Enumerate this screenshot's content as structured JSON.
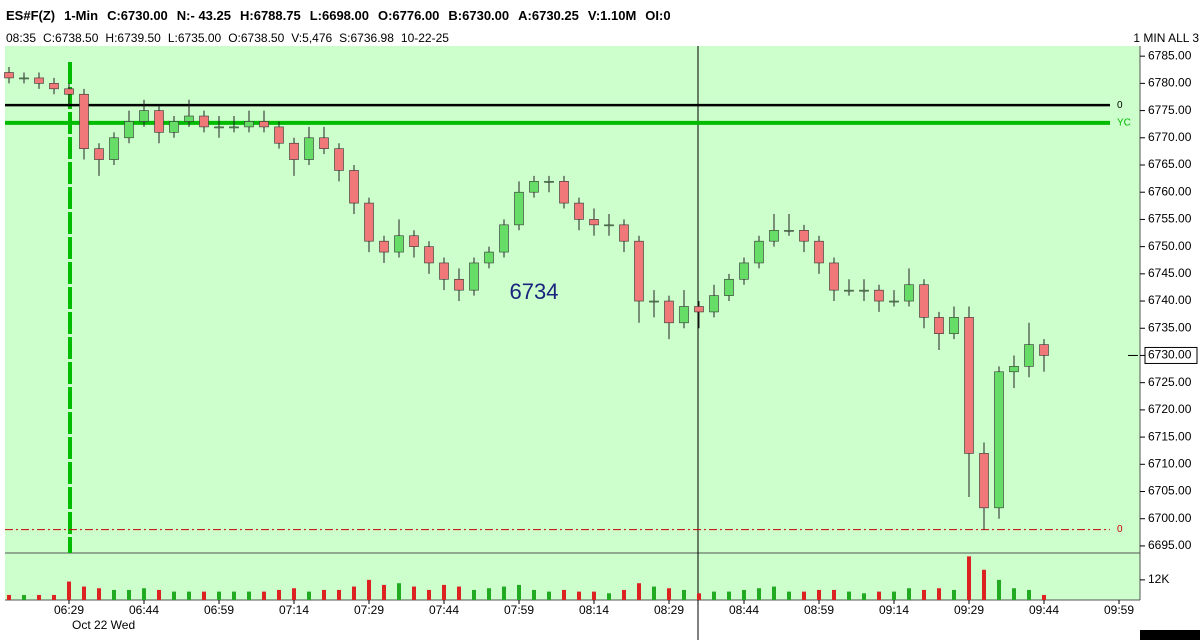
{
  "header": {
    "quote_line": [
      "ES#F(Z)",
      "1-Min",
      "C:6730.00",
      "N:- 43.25",
      "H:6788.75",
      "L:6698.00",
      "O:6776.00",
      "B:6730.00",
      "A:6730.25",
      "V:1.10M",
      "OI:0"
    ],
    "bar_line": [
      "08:35",
      "C:6738.50",
      "H:6739.50",
      "L:6735.00",
      "O:6738.50",
      "V:5,476",
      "S:6736.98",
      "10-22-25"
    ],
    "view_label": "1 MIN ALL 3"
  },
  "chart_data": {
    "type": "candlestick",
    "categories": [
      null,
      null,
      null,
      null,
      "06:29",
      null,
      null,
      null,
      null,
      "06:44",
      null,
      null,
      null,
      null,
      "06:59",
      null,
      null,
      null,
      null,
      "07:14",
      null,
      null,
      null,
      null,
      "07:29",
      null,
      null,
      null,
      null,
      "07:44",
      null,
      null,
      null,
      null,
      "07:59",
      null,
      null,
      null,
      null,
      "08:14",
      null,
      null,
      null,
      null,
      "08:29",
      null,
      null,
      null,
      null,
      "08:44",
      null,
      null,
      null,
      null,
      "08:59",
      null,
      null,
      null,
      null,
      "09:14",
      null,
      null,
      null,
      null,
      "09:29",
      null,
      null,
      null,
      null,
      "09:44",
      null,
      null,
      null,
      null,
      "09:59",
      null
    ],
    "open": [
      6782,
      6781,
      6781,
      6780,
      6779,
      6778,
      6768,
      6766,
      6770,
      6773,
      6775,
      6771,
      6773,
      6774,
      6772,
      6772,
      6772,
      6773,
      6772,
      6769,
      6766,
      6770,
      6768,
      6764,
      6758,
      6751,
      6749,
      6752,
      6750,
      6747,
      6744,
      6742,
      6747,
      6749,
      6754,
      6760,
      6762,
      6762,
      6758,
      6755,
      6754,
      6754,
      6751,
      6740,
      6740,
      6736,
      6739,
      6738,
      6741,
      6744,
      6747,
      6751,
      6753,
      6753,
      6751,
      6747,
      6742,
      6742,
      6742,
      6740,
      6740,
      6743,
      6737,
      6734,
      6737,
      6712,
      6702,
      6727,
      6728,
      6732,
      null,
      null,
      null,
      null,
      null,
      null
    ],
    "high": [
      6783,
      6782,
      6782,
      6781,
      6780,
      6779,
      6769,
      6771,
      6775,
      6777,
      6776,
      6774,
      6777,
      6775,
      6774,
      6774,
      6775,
      6775,
      6773,
      6770,
      6772,
      6772,
      6769,
      6765,
      6759,
      6752,
      6755,
      6753,
      6751,
      6748,
      6746,
      6748,
      6750,
      6755,
      6762,
      6763,
      6763,
      6763,
      6759,
      6757,
      6756,
      6755,
      6752,
      6742,
      6741,
      6742,
      6740,
      6743,
      6745,
      6748,
      6752,
      6756,
      6756,
      6754,
      6752,
      6748,
      6744,
      6744,
      6743,
      6742,
      6746,
      6744,
      6738,
      6739,
      6739,
      6714,
      6728,
      6730,
      6736,
      6733,
      null,
      null,
      null,
      null,
      null,
      null
    ],
    "low": [
      6780,
      6780,
      6779,
      6778,
      6776,
      6766,
      6763,
      6765,
      6769,
      6772,
      6769,
      6770,
      6772,
      6771,
      6770,
      6771,
      6771,
      6771,
      6768,
      6763,
      6765,
      6767,
      6762,
      6756,
      6749,
      6747,
      6748,
      6748,
      6745,
      6742,
      6740,
      6741,
      6746,
      6748,
      6753,
      6759,
      6760,
      6757,
      6753,
      6752,
      6752,
      6749,
      6736,
      6737,
      6733,
      6735,
      6735,
      6737,
      6740,
      6743,
      6746,
      6750,
      6752,
      6749,
      6745,
      6740,
      6741,
      6740,
      6738,
      6739,
      6739,
      6735,
      6731,
      6733,
      6704,
      6698,
      6700,
      6724,
      6726,
      6727,
      null,
      null,
      null,
      null,
      null,
      null
    ],
    "close": [
      6781,
      6781,
      6780,
      6779,
      6778,
      6768,
      6766,
      6770,
      6773,
      6775,
      6771,
      6773,
      6774,
      6772,
      6772,
      6772,
      6773,
      6772,
      6769,
      6766,
      6770,
      6768,
      6764,
      6758,
      6751,
      6749,
      6752,
      6750,
      6747,
      6744,
      6742,
      6747,
      6749,
      6754,
      6760,
      6762,
      6762,
      6758,
      6755,
      6754,
      6754,
      6751,
      6740,
      6740,
      6736,
      6739,
      6738,
      6741,
      6744,
      6747,
      6751,
      6753,
      6753,
      6751,
      6747,
      6742,
      6742,
      6742,
      6740,
      6740,
      6743,
      6737,
      6734,
      6737,
      6712,
      6702,
      6727,
      6728,
      6732,
      6730,
      null,
      null,
      null,
      null,
      null,
      null
    ],
    "up_color": "#66dd66",
    "down_color": "#f07878",
    "ylim": [
      6693.7,
      6786.5
    ],
    "yticks": [
      {
        "value": 6695,
        "label": "6695.00"
      },
      {
        "value": 6700,
        "label": "6700.00"
      },
      {
        "value": 6705,
        "label": "6705.00"
      },
      {
        "value": 6710,
        "label": "6710.00"
      },
      {
        "value": 6715,
        "label": "6715.00"
      },
      {
        "value": 6720,
        "label": "6720.00"
      },
      {
        "value": 6725,
        "label": "6725.00"
      },
      {
        "value": 6730,
        "label": "6730.00"
      },
      {
        "value": 6735,
        "label": "6735.00"
      },
      {
        "value": 6740,
        "label": "6740.00"
      },
      {
        "value": 6745,
        "label": "6745.00"
      },
      {
        "value": 6750,
        "label": "6750.00"
      },
      {
        "value": 6755,
        "label": "6755.00"
      },
      {
        "value": 6760,
        "label": "6760.00"
      },
      {
        "value": 6765,
        "label": "6765.00"
      },
      {
        "value": 6770,
        "label": "6770.00"
      },
      {
        "value": 6775,
        "label": "6775.00"
      },
      {
        "value": 6780,
        "label": "6780.00"
      },
      {
        "value": 6785,
        "label": "6785.00"
      }
    ],
    "volume": [
      3000,
      3000,
      3000,
      3000,
      11000,
      8000,
      7000,
      6000,
      6000,
      7000,
      6000,
      5000,
      5000,
      5000,
      5000,
      5000,
      5000,
      5000,
      6000,
      7000,
      5000,
      6000,
      6000,
      8000,
      12000,
      9000,
      10000,
      8000,
      6000,
      9000,
      8000,
      6000,
      7000,
      8000,
      9000,
      6000,
      5000,
      6000,
      5000,
      5000,
      4000,
      6000,
      10000,
      8000,
      7000,
      6000,
      4000,
      5000,
      5000,
      6000,
      7000,
      8000,
      5000,
      5000,
      6000,
      6000,
      5000,
      4000,
      5000,
      5000,
      7000,
      6000,
      7000,
      6000,
      26000,
      18000,
      12000,
      7000,
      6000,
      3000,
      null,
      null,
      null,
      null,
      null,
      null
    ],
    "volume_ylim": [
      0,
      28000
    ],
    "volume_yticks": [
      {
        "value": 12000,
        "label": "12K"
      }
    ],
    "reference_lines": [
      {
        "value": 6776,
        "label": "0",
        "color": "#000000"
      },
      {
        "value": 6772.75,
        "label": "YC",
        "color": "#00bb00"
      },
      {
        "value": 6698,
        "label": "0",
        "color": "#cc0000"
      }
    ],
    "last_price": {
      "value": 6730,
      "label": "6730.00"
    },
    "annotations": [
      "6734",
      "Oct 22 Wed"
    ]
  }
}
